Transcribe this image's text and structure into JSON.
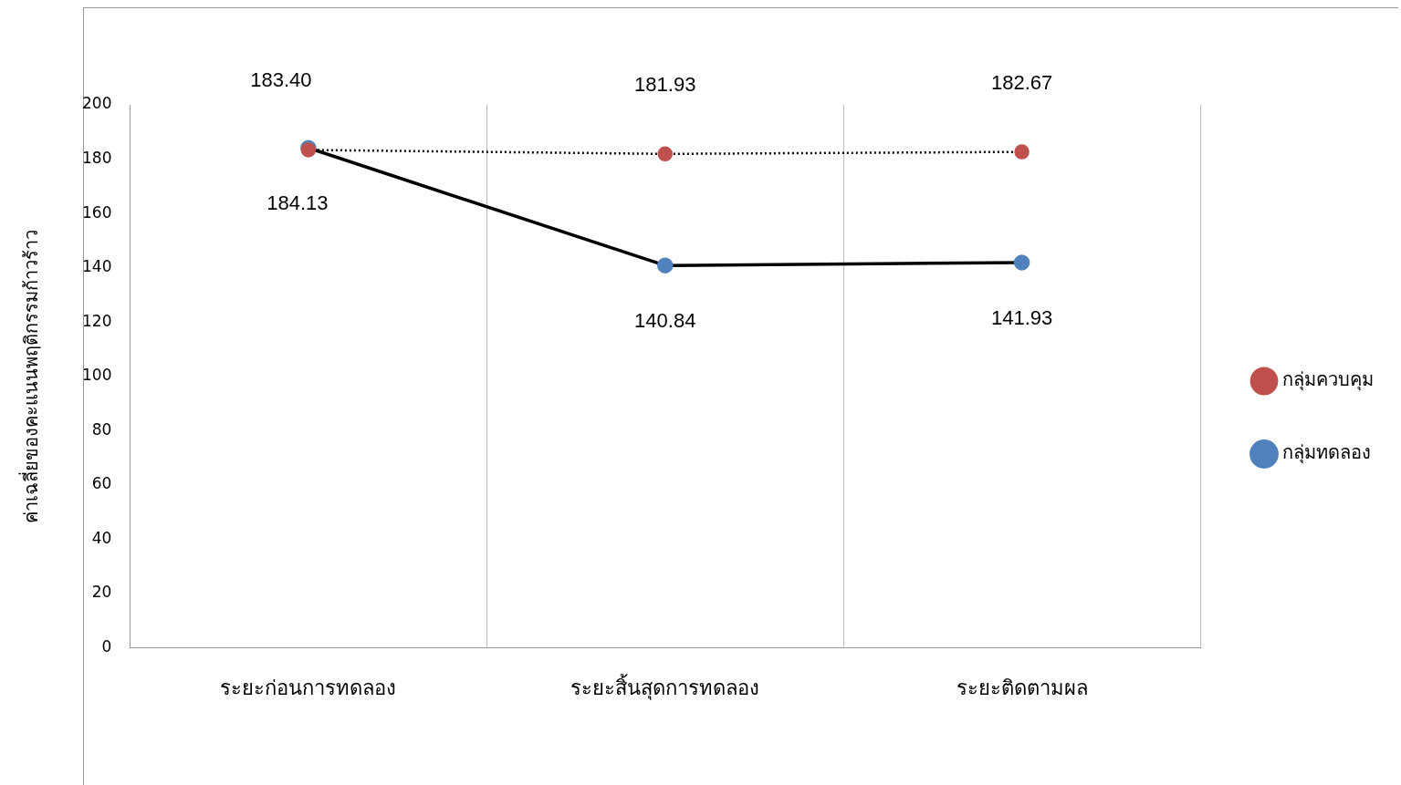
{
  "chart_data": {
    "type": "line",
    "ylabel": "ค่าเฉลี่ยของคะแนนพฤติกรรมก้าวร้าว",
    "categories": [
      "ระยะก่อนการทดลอง",
      "ระยะสิ้นสุดการทดลอง",
      "ระยะติดตามผล"
    ],
    "series": [
      {
        "name": "กลุ่มทดลอง",
        "color": "#4f81bd",
        "values": [
          184.13,
          140.84,
          141.93
        ],
        "value_labels": [
          "184.13",
          "140.84",
          "141.93"
        ],
        "line_style": "solid"
      },
      {
        "name": "กลุ่มควบคุม",
        "color": "#c0504d",
        "values": [
          183.4,
          181.93,
          182.67
        ],
        "value_labels": [
          "183.40",
          "181.93",
          "182.67"
        ],
        "line_style": "dotted"
      }
    ],
    "ylim": [
      0,
      200
    ],
    "yticks": [
      0,
      20,
      40,
      60,
      80,
      100,
      120,
      140,
      160,
      180,
      200
    ],
    "grid": "x",
    "legend": "right",
    "marker": "circle"
  }
}
